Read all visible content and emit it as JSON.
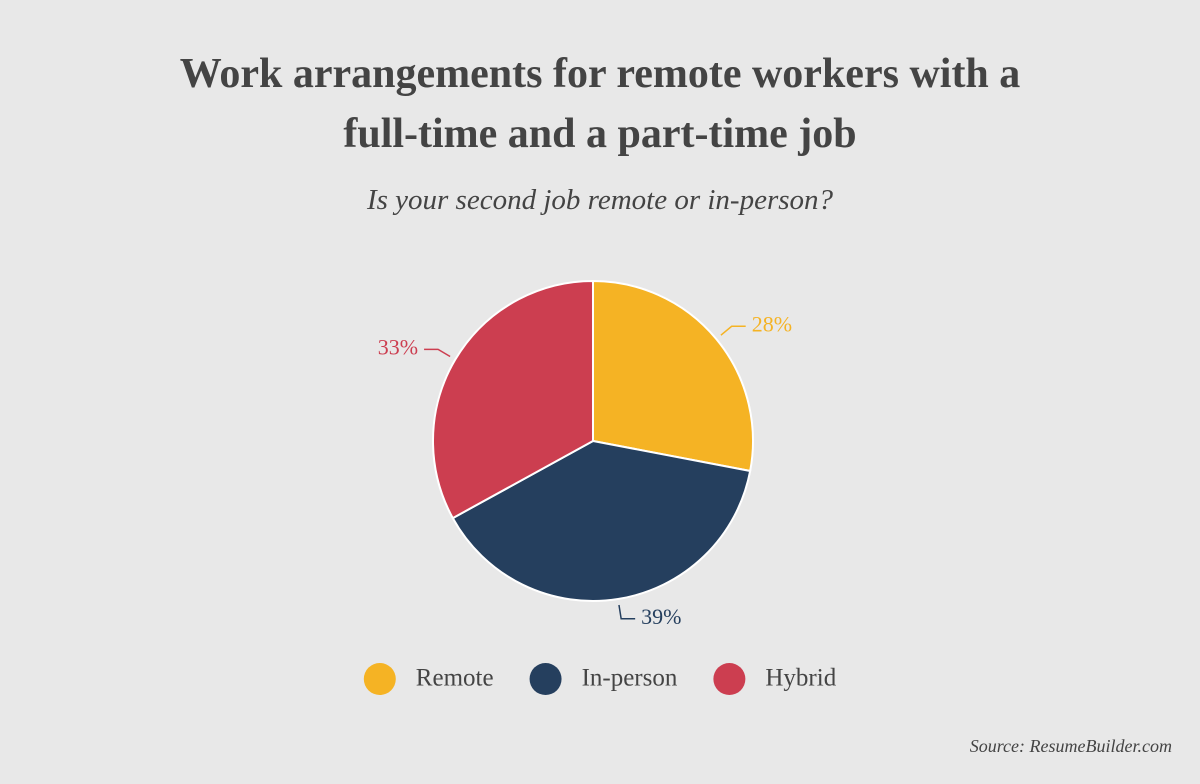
{
  "chart_data": {
    "type": "pie",
    "title": "Work arrangements for remote workers with a full-time and a part-time job",
    "subtitle": "Is your second job remote or in-person?",
    "categories": [
      "Remote",
      "In-person",
      "Hybrid"
    ],
    "values": [
      28,
      39,
      33
    ],
    "value_labels": [
      "28%",
      "39%",
      "33%"
    ],
    "colors": [
      "#f5b324",
      "#253f5e",
      "#cc3e50"
    ],
    "source": "Source: ResumeBuilder.com"
  }
}
